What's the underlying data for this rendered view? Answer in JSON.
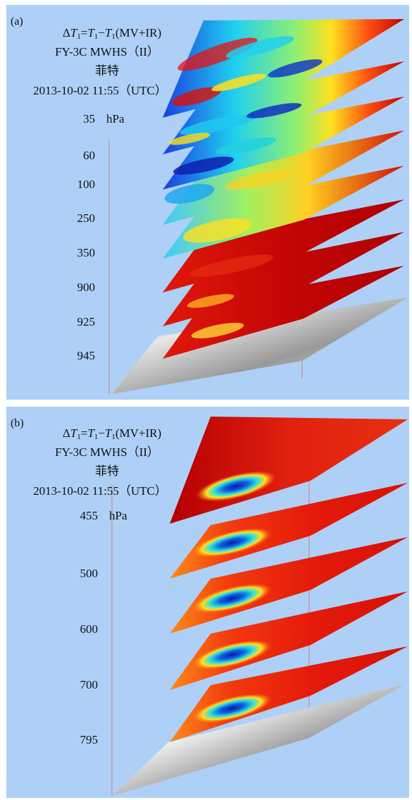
{
  "panels": [
    {
      "id": "a",
      "label": "(a)",
      "formula": {
        "delta": "Δ",
        "t1": "T",
        "sub1": "1",
        "eq": "=",
        "t2": "T",
        "sub2": "1",
        "minus": "−",
        "t3": "T",
        "sub3": "1",
        "suffix": "(MV+IR)"
      },
      "instrument": "FY-3C MWHS（II）",
      "typhoon": "菲特",
      "datetime": "2013-10-02   11:55（UTC）",
      "unit": "hPa",
      "levels": [
        "35",
        "60",
        "100",
        "250",
        "350",
        "900",
        "925",
        "945"
      ]
    },
    {
      "id": "b",
      "label": "(b)",
      "formula": {
        "delta": "Δ",
        "t1": "T",
        "sub1": "1",
        "eq": "=",
        "t2": "T",
        "sub2": "1",
        "minus": "−",
        "t3": "T",
        "sub3": "1",
        "suffix": "(MV+IR)"
      },
      "instrument": "FY-3C MWHS（II）",
      "typhoon": "菲特",
      "datetime": "2013-10-02   11:55（UTC）",
      "unit": "hPa",
      "levels": [
        "455",
        "500",
        "600",
        "700",
        "795"
      ]
    }
  ],
  "colors": {
    "background": "#aed0f6",
    "dark_red": "#b80000",
    "red": "#e8140e",
    "orange": "#ff7a10",
    "yellow": "#ffe820",
    "cyan": "#20d8e8",
    "blue": "#1030c8",
    "axis": "#d08080"
  }
}
